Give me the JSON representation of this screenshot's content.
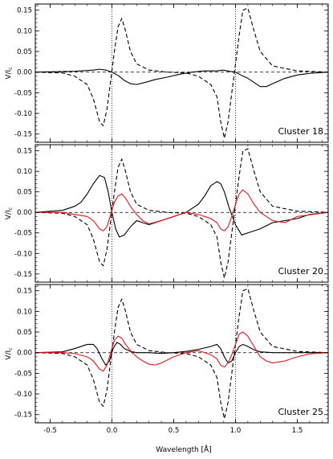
{
  "chart_data": {
    "type": "line",
    "xlabel": "Wavelength [Å]",
    "ylabel": "V/I",
    "ylabel_sub": "c",
    "xlim": [
      -0.62,
      1.75
    ],
    "ylim": [
      -0.17,
      0.165
    ],
    "xticks": [
      -0.5,
      0.0,
      0.5,
      1.0,
      1.5
    ],
    "xtick_labels": [
      "-0.5",
      "0.0",
      "0.5",
      "1.0",
      "1.5"
    ],
    "yticks": [
      -0.15,
      -0.1,
      -0.05,
      0.0,
      0.05,
      0.1,
      0.15
    ],
    "ytick_labels": [
      "-0.15",
      "-0.10",
      "-0.05",
      "0.00",
      "0.05",
      "0.10",
      "0.15"
    ],
    "reference_lines": {
      "horizontal_dashed_y": 0.0,
      "vertical_dotted_x": [
        0.0,
        1.0
      ]
    },
    "colors": {
      "black": "#000000",
      "red": "#e8141c"
    },
    "panels": [
      {
        "label": "Cluster 18",
        "series": [
          {
            "color": "black",
            "style": "dashed",
            "x": [
              -0.62,
              -0.4,
              -0.3,
              -0.2,
              -0.15,
              -0.1,
              -0.07,
              -0.04,
              -0.01,
              0.02,
              0.05,
              0.08,
              0.11,
              0.15,
              0.2,
              0.3,
              0.45,
              0.6,
              0.7,
              0.8,
              0.85,
              0.88,
              0.91,
              0.94,
              0.97,
              1.0,
              1.03,
              1.06,
              1.1,
              1.15,
              1.2,
              1.3,
              1.5,
              1.75
            ],
            "y": [
              0.0,
              -0.002,
              -0.01,
              -0.03,
              -0.065,
              -0.12,
              -0.13,
              -0.09,
              -0.02,
              0.05,
              0.11,
              0.13,
              0.1,
              0.05,
              0.02,
              0.005,
              0.0,
              -0.002,
              -0.01,
              -0.03,
              -0.06,
              -0.12,
              -0.16,
              -0.12,
              -0.05,
              0.02,
              0.09,
              0.15,
              0.155,
              0.1,
              0.05,
              0.015,
              0.003,
              0.0
            ]
          },
          {
            "color": "black",
            "style": "solid",
            "x": [
              -0.62,
              -0.3,
              -0.15,
              -0.1,
              -0.05,
              0.0,
              0.05,
              0.1,
              0.15,
              0.2,
              0.28,
              0.35,
              0.45,
              0.55,
              0.65,
              0.75,
              0.85,
              0.9,
              0.95,
              1.0,
              1.05,
              1.1,
              1.15,
              1.2,
              1.25,
              1.3,
              1.4,
              1.5,
              1.6,
              1.75
            ],
            "y": [
              0.0,
              0.002,
              0.005,
              0.007,
              0.005,
              0.0,
              -0.008,
              -0.02,
              -0.028,
              -0.03,
              -0.024,
              -0.018,
              -0.012,
              -0.005,
              0.0,
              0.003,
              0.003,
              0.005,
              0.002,
              0.0,
              -0.008,
              -0.015,
              -0.025,
              -0.035,
              -0.035,
              -0.028,
              -0.015,
              -0.007,
              -0.003,
              0.0
            ]
          }
        ]
      },
      {
        "label": "Cluster 20",
        "series": [
          {
            "color": "black",
            "style": "dashed",
            "x": [
              -0.62,
              -0.4,
              -0.3,
              -0.2,
              -0.15,
              -0.1,
              -0.07,
              -0.04,
              -0.01,
              0.02,
              0.05,
              0.08,
              0.11,
              0.15,
              0.2,
              0.3,
              0.45,
              0.6,
              0.7,
              0.8,
              0.85,
              0.88,
              0.91,
              0.94,
              0.97,
              1.0,
              1.03,
              1.06,
              1.1,
              1.15,
              1.2,
              1.3,
              1.5,
              1.75
            ],
            "y": [
              0.0,
              -0.002,
              -0.01,
              -0.03,
              -0.065,
              -0.12,
              -0.13,
              -0.09,
              -0.02,
              0.05,
              0.11,
              0.13,
              0.1,
              0.05,
              0.02,
              0.005,
              0.0,
              -0.002,
              -0.01,
              -0.03,
              -0.06,
              -0.12,
              -0.16,
              -0.12,
              -0.05,
              0.02,
              0.09,
              0.15,
              0.155,
              0.1,
              0.05,
              0.015,
              0.003,
              0.0
            ]
          },
          {
            "color": "black",
            "style": "solid",
            "x": [
              -0.62,
              -0.4,
              -0.3,
              -0.25,
              -0.2,
              -0.15,
              -0.1,
              -0.06,
              -0.03,
              0.0,
              0.03,
              0.06,
              0.1,
              0.15,
              0.2,
              0.25,
              0.3,
              0.4,
              0.5,
              0.6,
              0.7,
              0.75,
              0.8,
              0.85,
              0.88,
              0.91,
              0.95,
              1.0,
              1.05,
              1.1,
              1.2,
              1.3,
              1.4,
              1.5,
              1.6,
              1.75
            ],
            "y": [
              0.0,
              0.005,
              0.015,
              0.025,
              0.045,
              0.07,
              0.09,
              0.085,
              0.05,
              0.0,
              -0.04,
              -0.06,
              -0.055,
              -0.035,
              -0.02,
              -0.025,
              -0.03,
              -0.02,
              -0.01,
              0.0,
              0.02,
              0.04,
              0.065,
              0.075,
              0.07,
              0.05,
              0.01,
              -0.03,
              -0.055,
              -0.05,
              -0.04,
              -0.025,
              -0.02,
              -0.015,
              -0.005,
              0.0
            ]
          },
          {
            "color": "red",
            "style": "solid",
            "x": [
              -0.62,
              -0.4,
              -0.3,
              -0.2,
              -0.15,
              -0.1,
              -0.07,
              -0.04,
              -0.01,
              0.02,
              0.05,
              0.08,
              0.11,
              0.15,
              0.2,
              0.25,
              0.3,
              0.4,
              0.5,
              0.6,
              0.7,
              0.75,
              0.8,
              0.85,
              0.88,
              0.91,
              0.94,
              0.97,
              1.0,
              1.03,
              1.06,
              1.1,
              1.15,
              1.2,
              1.3,
              1.4,
              1.5,
              1.75
            ],
            "y": [
              0.0,
              0.0,
              -0.005,
              -0.01,
              -0.02,
              -0.04,
              -0.045,
              -0.035,
              -0.005,
              0.025,
              0.04,
              0.045,
              0.035,
              0.015,
              -0.005,
              -0.02,
              -0.028,
              -0.02,
              -0.01,
              0.0,
              -0.005,
              -0.01,
              -0.015,
              -0.025,
              -0.04,
              -0.045,
              -0.035,
              -0.01,
              0.02,
              0.045,
              0.055,
              0.045,
              0.02,
              0.0,
              -0.02,
              -0.025,
              -0.01,
              0.0
            ]
          }
        ]
      },
      {
        "label": "Cluster 25",
        "series": [
          {
            "color": "black",
            "style": "dashed",
            "x": [
              -0.62,
              -0.4,
              -0.3,
              -0.2,
              -0.15,
              -0.1,
              -0.07,
              -0.04,
              -0.01,
              0.02,
              0.05,
              0.08,
              0.11,
              0.15,
              0.2,
              0.3,
              0.45,
              0.6,
              0.7,
              0.8,
              0.85,
              0.88,
              0.91,
              0.94,
              0.97,
              1.0,
              1.03,
              1.06,
              1.1,
              1.15,
              1.2,
              1.3,
              1.5,
              1.75
            ],
            "y": [
              0.0,
              -0.002,
              -0.01,
              -0.03,
              -0.065,
              -0.12,
              -0.13,
              -0.09,
              -0.02,
              0.05,
              0.11,
              0.13,
              0.1,
              0.05,
              0.02,
              0.005,
              0.0,
              -0.002,
              -0.01,
              -0.03,
              -0.06,
              -0.12,
              -0.16,
              -0.12,
              -0.05,
              0.02,
              0.09,
              0.15,
              0.155,
              0.1,
              0.05,
              0.015,
              0.003,
              0.0
            ]
          },
          {
            "color": "black",
            "style": "solid",
            "x": [
              -0.62,
              -0.4,
              -0.3,
              -0.2,
              -0.15,
              -0.12,
              -0.08,
              -0.05,
              -0.02,
              0.01,
              0.04,
              0.07,
              0.1,
              0.15,
              0.2,
              0.3,
              0.4,
              0.5,
              0.6,
              0.7,
              0.8,
              0.85,
              0.88,
              0.91,
              0.94,
              0.97,
              1.0,
              1.03,
              1.06,
              1.1,
              1.15,
              1.2,
              1.3,
              1.5,
              1.75
            ],
            "y": [
              0.0,
              0.002,
              0.01,
              0.02,
              0.02,
              0.01,
              -0.015,
              -0.03,
              -0.02,
              0.01,
              0.025,
              0.02,
              0.01,
              0.003,
              0.0,
              0.0,
              -0.002,
              0.0,
              0.003,
              0.008,
              0.015,
              0.02,
              0.01,
              -0.01,
              -0.025,
              -0.02,
              0.0,
              0.015,
              0.02,
              0.015,
              0.007,
              0.002,
              0.0,
              0.0,
              0.0
            ]
          },
          {
            "color": "red",
            "style": "solid",
            "x": [
              -0.62,
              -0.4,
              -0.3,
              -0.2,
              -0.15,
              -0.1,
              -0.07,
              -0.04,
              -0.01,
              0.02,
              0.05,
              0.08,
              0.11,
              0.15,
              0.2,
              0.25,
              0.3,
              0.35,
              0.4,
              0.5,
              0.6,
              0.7,
              0.75,
              0.8,
              0.85,
              0.88,
              0.91,
              0.94,
              0.97,
              1.0,
              1.03,
              1.06,
              1.1,
              1.15,
              1.2,
              1.25,
              1.3,
              1.4,
              1.5,
              1.6,
              1.75
            ],
            "y": [
              0.0,
              0.0,
              -0.002,
              -0.01,
              -0.02,
              -0.04,
              -0.045,
              -0.03,
              0.0,
              0.03,
              0.04,
              0.035,
              0.02,
              0.005,
              -0.01,
              -0.02,
              -0.028,
              -0.03,
              -0.025,
              -0.01,
              0.0,
              0.005,
              0.0,
              -0.005,
              -0.015,
              -0.03,
              -0.035,
              -0.025,
              -0.005,
              0.02,
              0.045,
              0.05,
              0.04,
              0.015,
              -0.01,
              -0.02,
              -0.025,
              -0.02,
              -0.01,
              -0.003,
              0.0
            ]
          }
        ]
      }
    ]
  }
}
